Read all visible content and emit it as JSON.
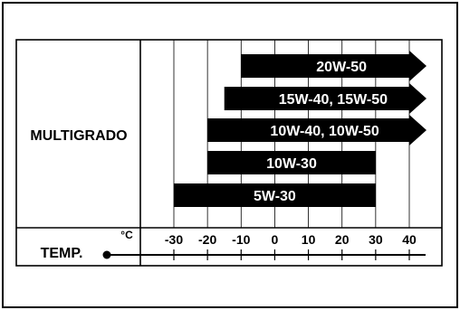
{
  "diagram": {
    "row_label": "MULTIGRADO",
    "temp_label": "TEMP.",
    "unit_label": "°C",
    "axis": {
      "min": -35,
      "max": 50,
      "ticks": [
        -30,
        -20,
        -10,
        0,
        10,
        20,
        30,
        40
      ],
      "tick_labels": [
        "-30",
        "-20",
        "-10",
        "0",
        "10",
        "20",
        "30",
        "40"
      ]
    },
    "bars": [
      {
        "label": "20W-50",
        "from": -10,
        "to": 50,
        "arrow": true
      },
      {
        "label": "15W-40, 15W-50",
        "from": -15,
        "to": 50,
        "arrow": true
      },
      {
        "label": "10W-40, 10W-50",
        "from": -20,
        "to": 50,
        "arrow": true
      },
      {
        "label": "10W-30",
        "from": -20,
        "to": 30,
        "arrow": false
      },
      {
        "label": "5W-30",
        "from": -30,
        "to": 30,
        "arrow": false
      }
    ],
    "colors": {
      "bar": "#000000",
      "bar_text": "#ffffff",
      "line": "#000000",
      "grid": "#000000"
    }
  }
}
